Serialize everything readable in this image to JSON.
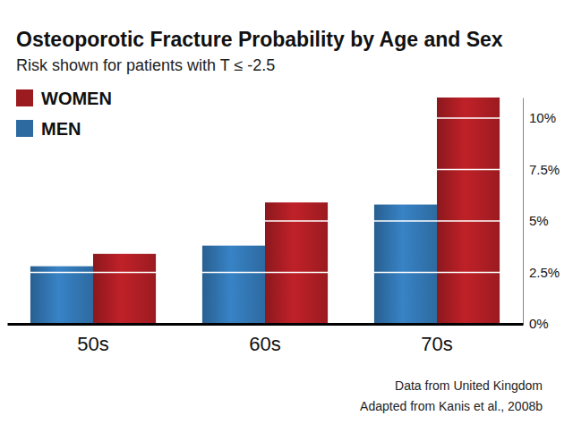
{
  "chart_data": {
    "type": "bar",
    "title": "Osteoporotic Fracture Probability by Age and Sex",
    "subtitle": "Risk shown for patients with T ≤ -2.5",
    "categories": [
      "50s",
      "60s",
      "70s"
    ],
    "series": [
      {
        "name": "MEN",
        "color": "#2d6aa0",
        "values": [
          2.8,
          3.8,
          5.8
        ]
      },
      {
        "name": "WOMEN",
        "color": "#9b1b20",
        "values": [
          3.4,
          5.9,
          11.0
        ]
      }
    ],
    "ylim": [
      0,
      11
    ],
    "yticks": [
      {
        "value": 0,
        "label": "0%"
      },
      {
        "value": 2.5,
        "label": "2.5%"
      },
      {
        "value": 5,
        "label": "5%"
      },
      {
        "value": 7.5,
        "label": "7.5%"
      },
      {
        "value": 10,
        "label": "10%"
      }
    ],
    "grid": true,
    "legend": "upper left",
    "annotations": [
      "Data from United Kingdom",
      "Adapted from Kanis et al., 2008b"
    ]
  }
}
